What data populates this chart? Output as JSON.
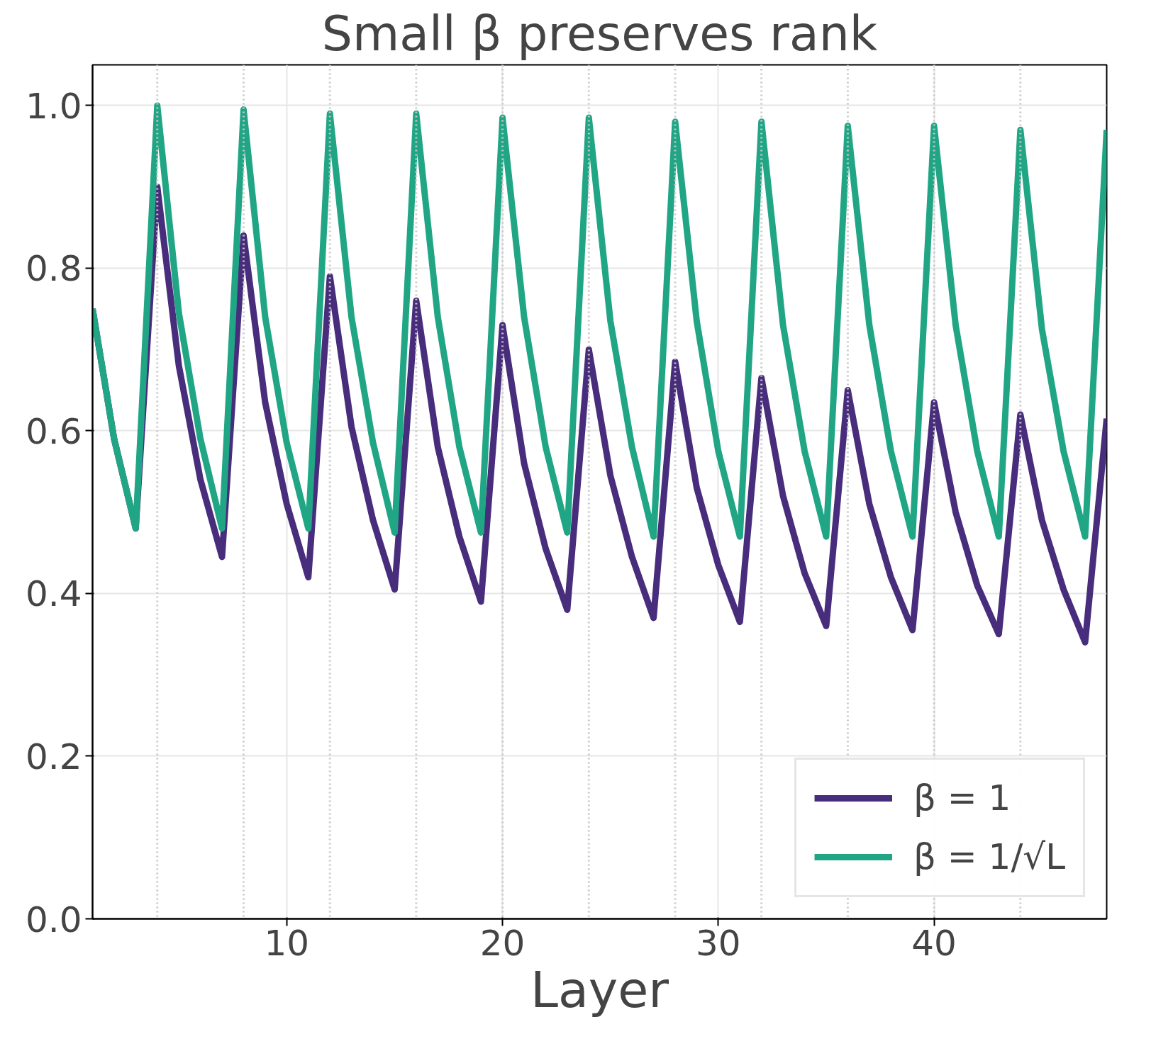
{
  "chart_data": {
    "type": "line",
    "title": "Small β preserves rank",
    "xlabel": "Layer",
    "x": [
      1,
      2,
      3,
      4,
      5,
      6,
      7,
      8,
      9,
      10,
      11,
      12,
      13,
      14,
      15,
      16,
      17,
      18,
      19,
      20,
      21,
      22,
      23,
      24,
      25,
      26,
      27,
      28,
      29,
      30,
      31,
      32,
      33,
      34,
      35,
      36,
      37,
      38,
      39,
      40,
      41,
      42,
      43,
      44,
      45,
      46,
      47,
      48
    ],
    "series": [
      {
        "name": "β = 1",
        "color": "#472d7b",
        "values": [
          0.75,
          0.59,
          0.48,
          0.9,
          0.68,
          0.54,
          0.445,
          0.84,
          0.635,
          0.51,
          0.42,
          0.79,
          0.605,
          0.49,
          0.405,
          0.76,
          0.58,
          0.47,
          0.39,
          0.73,
          0.56,
          0.455,
          0.38,
          0.7,
          0.545,
          0.445,
          0.37,
          0.685,
          0.53,
          0.435,
          0.365,
          0.665,
          0.52,
          0.425,
          0.36,
          0.65,
          0.51,
          0.42,
          0.355,
          0.635,
          0.5,
          0.41,
          0.35,
          0.62,
          0.49,
          0.405,
          0.34,
          0.615
        ]
      },
      {
        "name": "β = 1/√L",
        "color": "#21a685",
        "values": [
          0.75,
          0.59,
          0.48,
          1.0,
          0.745,
          0.59,
          0.48,
          0.995,
          0.74,
          0.585,
          0.48,
          0.99,
          0.74,
          0.585,
          0.475,
          0.99,
          0.74,
          0.58,
          0.475,
          0.985,
          0.74,
          0.58,
          0.475,
          0.985,
          0.735,
          0.58,
          0.47,
          0.98,
          0.735,
          0.575,
          0.47,
          0.98,
          0.73,
          0.575,
          0.47,
          0.975,
          0.73,
          0.575,
          0.47,
          0.975,
          0.73,
          0.575,
          0.47,
          0.97,
          0.725,
          0.575,
          0.47,
          0.97
        ]
      }
    ],
    "xlim": [
      1,
      48
    ],
    "ylim": [
      0,
      1.05
    ],
    "xticks": [
      10,
      20,
      30,
      40
    ],
    "yticks": [
      {
        "value": 0,
        "label": "0.0"
      },
      0.2,
      0.4,
      0.6,
      0.8,
      {
        "value": 1,
        "label": "1.0"
      }
    ],
    "ref_lines": [
      {
        "axis": "x",
        "value": 4,
        "color": "#c8c8c8",
        "line_style": "dotted"
      },
      {
        "axis": "x",
        "value": 8,
        "color": "#c8c8c8",
        "line_style": "dotted"
      },
      {
        "axis": "x",
        "value": 12,
        "color": "#c8c8c8",
        "line_style": "dotted"
      },
      {
        "axis": "x",
        "value": 16,
        "color": "#c8c8c8",
        "line_style": "dotted"
      },
      {
        "axis": "x",
        "value": 20,
        "color": "#c8c8c8",
        "line_style": "dotted"
      },
      {
        "axis": "x",
        "value": 24,
        "color": "#c8c8c8",
        "line_style": "dotted"
      },
      {
        "axis": "x",
        "value": 28,
        "color": "#c8c8c8",
        "line_style": "dotted"
      },
      {
        "axis": "x",
        "value": 32,
        "color": "#c8c8c8",
        "line_style": "dotted"
      },
      {
        "axis": "x",
        "value": 36,
        "color": "#c8c8c8",
        "line_style": "dotted"
      },
      {
        "axis": "x",
        "value": 40,
        "color": "#c8c8c8",
        "line_style": "dotted"
      },
      {
        "axis": "x",
        "value": 44,
        "color": "#c8c8c8",
        "line_style": "dotted"
      }
    ],
    "grid": true,
    "legend": "bottom right",
    "line_style": "solid",
    "marker": "none"
  }
}
